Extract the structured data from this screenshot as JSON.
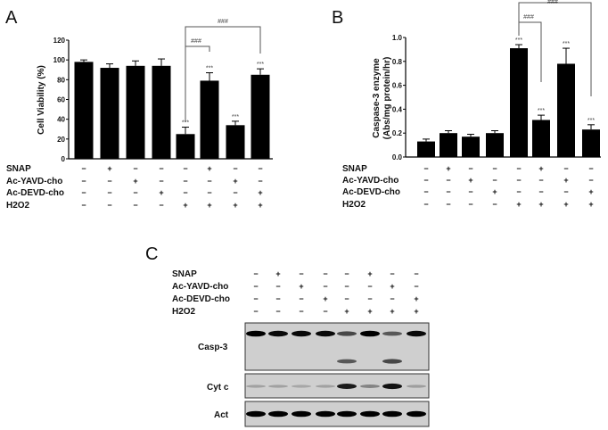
{
  "treatment_labels": [
    "SNAP",
    "Ac-YAVD-cho",
    "Ac-DEVD-cho",
    "H2O2"
  ],
  "treatments": {
    "SNAP": [
      "−",
      "+",
      "−",
      "−",
      "−",
      "+",
      "−",
      "−"
    ],
    "Ac-YAVD-cho": [
      "−",
      "−",
      "+",
      "−",
      "−",
      "−",
      "+",
      "−"
    ],
    "Ac-DEVD-cho": [
      "−",
      "−",
      "−",
      "+",
      "−",
      "−",
      "−",
      "+"
    ],
    "H2O2": [
      "−",
      "−",
      "−",
      "−",
      "+",
      "+",
      "+",
      "+"
    ]
  },
  "chart_data": [
    {
      "panel": "A",
      "type": "bar",
      "ylabel": "Cell Viability (%)",
      "ylim": [
        0,
        120
      ],
      "yticks": [
        0,
        20,
        40,
        60,
        80,
        100,
        120
      ],
      "values": [
        98,
        92,
        94,
        94,
        25,
        79,
        34,
        85
      ],
      "errors": [
        2,
        4,
        5,
        7,
        7,
        8,
        4,
        6
      ],
      "annotations": [
        "",
        "",
        "",
        "",
        "***",
        "***",
        "***",
        "***"
      ],
      "comparisons": [
        {
          "from": 5,
          "to": 6,
          "label": "###"
        },
        {
          "from": 5,
          "to": 8,
          "label": "###"
        }
      ],
      "bar_color": "#000000"
    },
    {
      "panel": "B",
      "type": "bar",
      "ylabel": [
        "Caspase-3  enzyme",
        "(Abs/mg protein/hr)"
      ],
      "ylim": [
        0,
        1.0
      ],
      "yticks": [
        "0.0",
        "0.2",
        "0.4",
        "0.6",
        "0.8",
        "1.0"
      ],
      "values": [
        0.13,
        0.2,
        0.17,
        0.2,
        0.91,
        0.31,
        0.78,
        0.23
      ],
      "errors": [
        0.02,
        0.02,
        0.02,
        0.02,
        0.03,
        0.04,
        0.13,
        0.04
      ],
      "annotations": [
        "",
        "",
        "",
        "",
        "***",
        "***",
        "***",
        "***"
      ],
      "comparisons": [
        {
          "from": 5,
          "to": 6,
          "label": "###"
        },
        {
          "from": 5,
          "to": 8,
          "label": "###"
        }
      ],
      "bar_color": "#000000"
    }
  ],
  "blot": {
    "panel": "C",
    "rows": [
      {
        "label": "Casp-3",
        "bands": [
          [
            1,
            0.95,
            0.95,
            0.95,
            0.6,
            1,
            0.5,
            0.95
          ],
          [
            0,
            0,
            0,
            0,
            0.5,
            0,
            0.6,
            0
          ]
        ]
      },
      {
        "label": "Cyt c",
        "bands": [
          [
            0.08,
            0.08,
            0.05,
            0.08,
            0.85,
            0.25,
            0.9,
            0.1
          ]
        ]
      },
      {
        "label": "Act",
        "bands": [
          [
            1,
            1,
            1,
            1,
            1,
            1,
            1,
            1
          ]
        ]
      }
    ]
  }
}
